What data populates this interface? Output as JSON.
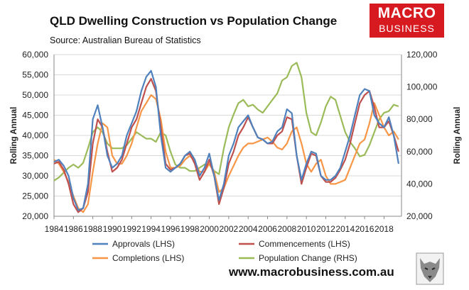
{
  "title": "QLD Dwelling Construction vs Population Change",
  "subtitle": "Source: Australian Bureau of Statistics",
  "logo": {
    "line1": "MACRO",
    "line2": "BUSINESS"
  },
  "website": "www.macrobusiness.com.au",
  "colors": {
    "approvals": "#4f81bd",
    "commencements": "#c0504d",
    "completions": "#f79646",
    "population": "#9bbb59",
    "logo": "#d71920"
  },
  "chart_data": {
    "type": "line",
    "title": "QLD Dwelling Construction vs Population Change",
    "ylabel_left": "Rolling Annual",
    "ylabel_right": "Rolling Annual",
    "ylim_left": [
      20000,
      60000
    ],
    "ylim_right": [
      20000,
      120000
    ],
    "xlim": [
      1984,
      2019.8
    ],
    "x_ticks": [
      "1984",
      "1986",
      "1988",
      "1990",
      "1992",
      "1994",
      "1996",
      "1998",
      "2000",
      "2002",
      "2004",
      "2006",
      "2008",
      "2010",
      "2012",
      "2014",
      "2016",
      "2018"
    ],
    "y_ticks_left": [
      "20,000",
      "25,000",
      "30,000",
      "35,000",
      "40,000",
      "45,000",
      "50,000",
      "55,000",
      "60,000"
    ],
    "y_ticks_right": [
      "20,000",
      "40,000",
      "60,000",
      "80,000",
      "100,000",
      "120,000"
    ],
    "grid": true,
    "legend_position": "bottom",
    "series": [
      {
        "name": "Approvals (LHS)",
        "axis": "left",
        "color": "#4f81bd",
        "points": [
          [
            1984,
            33500
          ],
          [
            1984.5,
            34000
          ],
          [
            1985,
            32500
          ],
          [
            1985.5,
            30000
          ],
          [
            1986,
            24500
          ],
          [
            1986.5,
            21500
          ],
          [
            1987,
            22000
          ],
          [
            1987.5,
            28000
          ],
          [
            1988,
            44000
          ],
          [
            1988.5,
            47500
          ],
          [
            1989,
            42000
          ],
          [
            1989.5,
            35000
          ],
          [
            1990,
            32000
          ],
          [
            1990.5,
            33000
          ],
          [
            1991,
            35000
          ],
          [
            1991.5,
            40000
          ],
          [
            1992,
            43000
          ],
          [
            1992.5,
            46000
          ],
          [
            1993,
            51000
          ],
          [
            1993.5,
            54500
          ],
          [
            1994,
            56000
          ],
          [
            1994.5,
            52000
          ],
          [
            1995,
            40000
          ],
          [
            1995.5,
            32000
          ],
          [
            1996,
            31000
          ],
          [
            1996.5,
            32000
          ],
          [
            1997,
            33000
          ],
          [
            1997.5,
            35000
          ],
          [
            1998,
            36000
          ],
          [
            1998.5,
            34000
          ],
          [
            1999,
            30000
          ],
          [
            1999.5,
            32000
          ],
          [
            2000,
            35500
          ],
          [
            2000.5,
            30000
          ],
          [
            2001,
            24000
          ],
          [
            2001.5,
            28000
          ],
          [
            2002,
            35000
          ],
          [
            2002.5,
            38000
          ],
          [
            2003,
            42000
          ],
          [
            2003.5,
            43500
          ],
          [
            2004,
            45000
          ],
          [
            2004.5,
            42000
          ],
          [
            2005,
            39500
          ],
          [
            2005.5,
            39000
          ],
          [
            2006,
            38000
          ],
          [
            2006.5,
            38500
          ],
          [
            2007,
            41000
          ],
          [
            2007.5,
            42000
          ],
          [
            2008,
            46500
          ],
          [
            2008.5,
            45500
          ],
          [
            2009,
            35000
          ],
          [
            2009.5,
            29000
          ],
          [
            2010,
            33000
          ],
          [
            2010.5,
            36000
          ],
          [
            2011,
            35500
          ],
          [
            2011.5,
            30000
          ],
          [
            2012,
            29000
          ],
          [
            2012.5,
            29000
          ],
          [
            2013,
            30000
          ],
          [
            2013.5,
            32000
          ],
          [
            2014,
            36000
          ],
          [
            2014.5,
            40000
          ],
          [
            2015,
            45000
          ],
          [
            2015.5,
            50000
          ],
          [
            2016,
            51500
          ],
          [
            2016.5,
            51000
          ],
          [
            2017,
            45000
          ],
          [
            2017.5,
            43000
          ],
          [
            2018,
            42000
          ],
          [
            2018.5,
            44500
          ],
          [
            2019,
            40000
          ],
          [
            2019.5,
            33000
          ]
        ]
      },
      {
        "name": "Commencements (LHS)",
        "axis": "left",
        "color": "#c0504d",
        "points": [
          [
            1984,
            33000
          ],
          [
            1984.5,
            33500
          ],
          [
            1985,
            31500
          ],
          [
            1985.5,
            28000
          ],
          [
            1986,
            23000
          ],
          [
            1986.5,
            21000
          ],
          [
            1987,
            22000
          ],
          [
            1987.5,
            26000
          ],
          [
            1988,
            38000
          ],
          [
            1988.5,
            44000
          ],
          [
            1989,
            42000
          ],
          [
            1989.5,
            36000
          ],
          [
            1990,
            31000
          ],
          [
            1990.5,
            32000
          ],
          [
            1991,
            34000
          ],
          [
            1991.5,
            38000
          ],
          [
            1992,
            42000
          ],
          [
            1992.5,
            44000
          ],
          [
            1993,
            48000
          ],
          [
            1993.5,
            52000
          ],
          [
            1994,
            54000
          ],
          [
            1994.5,
            51000
          ],
          [
            1995,
            42000
          ],
          [
            1995.5,
            33000
          ],
          [
            1996,
            31500
          ],
          [
            1996.5,
            32000
          ],
          [
            1997,
            33000
          ],
          [
            1997.5,
            35000
          ],
          [
            1998,
            35500
          ],
          [
            1998.5,
            33000
          ],
          [
            1999,
            29000
          ],
          [
            1999.5,
            31000
          ],
          [
            2000,
            34000
          ],
          [
            2000.5,
            30000
          ],
          [
            2001,
            23000
          ],
          [
            2001.5,
            27000
          ],
          [
            2002,
            33000
          ],
          [
            2002.5,
            36000
          ],
          [
            2003,
            40000
          ],
          [
            2003.5,
            42000
          ],
          [
            2004,
            44500
          ],
          [
            2004.5,
            42000
          ],
          [
            2005,
            39500
          ],
          [
            2005.5,
            39000
          ],
          [
            2006,
            38000
          ],
          [
            2006.5,
            38000
          ],
          [
            2007,
            40000
          ],
          [
            2007.5,
            41000
          ],
          [
            2008,
            44500
          ],
          [
            2008.5,
            44000
          ],
          [
            2009,
            35000
          ],
          [
            2009.5,
            28000
          ],
          [
            2010,
            32000
          ],
          [
            2010.5,
            35500
          ],
          [
            2011,
            35000
          ],
          [
            2011.5,
            30000
          ],
          [
            2012,
            28500
          ],
          [
            2012.5,
            28500
          ],
          [
            2013,
            29500
          ],
          [
            2013.5,
            31500
          ],
          [
            2014,
            34000
          ],
          [
            2014.5,
            38000
          ],
          [
            2015,
            43000
          ],
          [
            2015.5,
            48000
          ],
          [
            2016,
            50000
          ],
          [
            2016.5,
            51000
          ],
          [
            2017,
            47000
          ],
          [
            2017.5,
            42000
          ],
          [
            2018,
            42000
          ],
          [
            2018.5,
            43500
          ],
          [
            2019,
            40000
          ],
          [
            2019.5,
            36000
          ]
        ]
      },
      {
        "name": "Completions (LHS)",
        "axis": "left",
        "color": "#f79646",
        "points": [
          [
            1984,
            34000
          ],
          [
            1984.5,
            33000
          ],
          [
            1985,
            31000
          ],
          [
            1985.5,
            28500
          ],
          [
            1986,
            25000
          ],
          [
            1986.5,
            22000
          ],
          [
            1987,
            21000
          ],
          [
            1987.5,
            23000
          ],
          [
            1988,
            31000
          ],
          [
            1988.5,
            38000
          ],
          [
            1989,
            43000
          ],
          [
            1989.5,
            42000
          ],
          [
            1990,
            35000
          ],
          [
            1990.5,
            33000
          ],
          [
            1991,
            33000
          ],
          [
            1991.5,
            35000
          ],
          [
            1992,
            38000
          ],
          [
            1992.5,
            42000
          ],
          [
            1993,
            46000
          ],
          [
            1993.5,
            48000
          ],
          [
            1994,
            50000
          ],
          [
            1994.5,
            49000
          ],
          [
            1995,
            44000
          ],
          [
            1995.5,
            36000
          ],
          [
            1996,
            32000
          ],
          [
            1996.5,
            32000
          ],
          [
            1997,
            32500
          ],
          [
            1997.5,
            34000
          ],
          [
            1998,
            35000
          ],
          [
            1998.5,
            33500
          ],
          [
            1999,
            31000
          ],
          [
            1999.5,
            31000
          ],
          [
            2000,
            33000
          ],
          [
            2000.5,
            31000
          ],
          [
            2001,
            26000
          ],
          [
            2001.5,
            27000
          ],
          [
            2002,
            30000
          ],
          [
            2002.5,
            32500
          ],
          [
            2003,
            35000
          ],
          [
            2003.5,
            37000
          ],
          [
            2004,
            38000
          ],
          [
            2004.5,
            38000
          ],
          [
            2005,
            38500
          ],
          [
            2005.5,
            39000
          ],
          [
            2006,
            39500
          ],
          [
            2006.5,
            38500
          ],
          [
            2007,
            37000
          ],
          [
            2007.5,
            36500
          ],
          [
            2008,
            38000
          ],
          [
            2008.5,
            41000
          ],
          [
            2009,
            42000
          ],
          [
            2009.5,
            38000
          ],
          [
            2010,
            33000
          ],
          [
            2010.5,
            31000
          ],
          [
            2011,
            33000
          ],
          [
            2011.5,
            34000
          ],
          [
            2012,
            30000
          ],
          [
            2012.5,
            28000
          ],
          [
            2013,
            28000
          ],
          [
            2013.5,
            28500
          ],
          [
            2014,
            29000
          ],
          [
            2014.5,
            32000
          ],
          [
            2015,
            35000
          ],
          [
            2015.5,
            38000
          ],
          [
            2016,
            39000
          ],
          [
            2016.5,
            43000
          ],
          [
            2017,
            48000
          ],
          [
            2017.5,
            45000
          ],
          [
            2018,
            42000
          ],
          [
            2018.5,
            40000
          ],
          [
            2019,
            41000
          ],
          [
            2019.5,
            39000
          ]
        ]
      },
      {
        "name": "Population Change (RHS)",
        "axis": "right",
        "color": "#9bbb59",
        "points": [
          [
            1984,
            42000
          ],
          [
            1984.5,
            44000
          ],
          [
            1985,
            47000
          ],
          [
            1985.5,
            50000
          ],
          [
            1986,
            52000
          ],
          [
            1986.5,
            50000
          ],
          [
            1987,
            53000
          ],
          [
            1987.5,
            62000
          ],
          [
            1988,
            72000
          ],
          [
            1988.5,
            75000
          ],
          [
            1989,
            72000
          ],
          [
            1989.5,
            65000
          ],
          [
            1990,
            62000
          ],
          [
            1990.5,
            62000
          ],
          [
            1991,
            62000
          ],
          [
            1991.5,
            64000
          ],
          [
            1992,
            68000
          ],
          [
            1992.5,
            72000
          ],
          [
            1993,
            70000
          ],
          [
            1993.5,
            68000
          ],
          [
            1994,
            68000
          ],
          [
            1994.5,
            66000
          ],
          [
            1995,
            72000
          ],
          [
            1995.5,
            70000
          ],
          [
            1996,
            60000
          ],
          [
            1996.5,
            52000
          ],
          [
            1997,
            50000
          ],
          [
            1997.5,
            50000
          ],
          [
            1998,
            48000
          ],
          [
            1998.5,
            48000
          ],
          [
            1999,
            50000
          ],
          [
            1999.5,
            52000
          ],
          [
            2000,
            52000
          ],
          [
            2000.5,
            48000
          ],
          [
            2001,
            46000
          ],
          [
            2001.5,
            62000
          ],
          [
            2002,
            75000
          ],
          [
            2002.5,
            83000
          ],
          [
            2003,
            90000
          ],
          [
            2003.5,
            92000
          ],
          [
            2004,
            88000
          ],
          [
            2004.5,
            89000
          ],
          [
            2005,
            86000
          ],
          [
            2005.5,
            84000
          ],
          [
            2006,
            88000
          ],
          [
            2006.5,
            92000
          ],
          [
            2007,
            96000
          ],
          [
            2007.5,
            104000
          ],
          [
            2008,
            106000
          ],
          [
            2008.5,
            113000
          ],
          [
            2009,
            115000
          ],
          [
            2009.5,
            106000
          ],
          [
            2010,
            84000
          ],
          [
            2010.5,
            72000
          ],
          [
            2011,
            70000
          ],
          [
            2011.5,
            78000
          ],
          [
            2012,
            88000
          ],
          [
            2012.5,
            94000
          ],
          [
            2013,
            92000
          ],
          [
            2013.5,
            82000
          ],
          [
            2014,
            72000
          ],
          [
            2014.5,
            66000
          ],
          [
            2015,
            62000
          ],
          [
            2015.5,
            57000
          ],
          [
            2016,
            58000
          ],
          [
            2016.5,
            64000
          ],
          [
            2017,
            72000
          ],
          [
            2017.5,
            80000
          ],
          [
            2018,
            84000
          ],
          [
            2018.5,
            85000
          ],
          [
            2019,
            89000
          ],
          [
            2019.5,
            88000
          ]
        ]
      }
    ]
  }
}
